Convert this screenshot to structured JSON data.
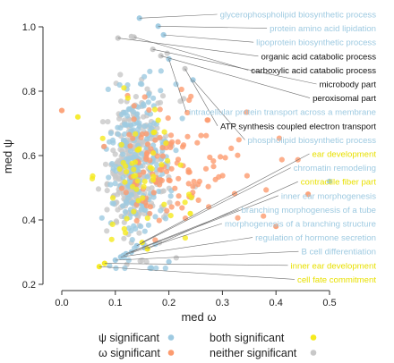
{
  "chart_data": {
    "type": "scatter",
    "xlabel": "med  ω",
    "ylabel": "med  ψ",
    "xlim": [
      -0.03,
      0.58
    ],
    "ylim": [
      0.18,
      1.08
    ],
    "x_ticks": [
      0.0,
      0.1,
      0.2,
      0.3,
      0.4,
      0.5
    ],
    "x_tick_labels": [
      "0.0",
      "0.1",
      "0.2",
      "0.3",
      "0.4",
      "0.5"
    ],
    "y_ticks": [
      0.2,
      0.4,
      0.6,
      0.8,
      1.0
    ],
    "y_tick_labels": [
      "0.2",
      "0.4",
      "0.6",
      "0.8",
      "1.0"
    ],
    "grid": false,
    "legend": {
      "placement": "bottom",
      "entries": [
        {
          "label": "ψ significant",
          "color": "#9ecae1"
        },
        {
          "label": "ω significant",
          "color": "#fc9b6f"
        },
        {
          "label": "both significant",
          "color": "#f5ea1e"
        },
        {
          "label": "neither significant",
          "color": "#c8c8c8"
        }
      ]
    },
    "colors": {
      "psi": "#9ecae1",
      "omega": "#fc9b6f",
      "both": "#f5ea1e",
      "neither": "#c8c8c8"
    },
    "annotations": [
      {
        "text": "glycerophospholipid biosynthetic process",
        "group": "psi",
        "x": 0.145,
        "y": 1.027
      },
      {
        "text": "protein amino acid lipidation",
        "group": "psi",
        "x": 0.18,
        "y": 1.002
      },
      {
        "text": "lipoprotein biosynthetic process",
        "group": "psi",
        "x": 0.19,
        "y": 0.975
      },
      {
        "text": "organic acid catabolic process",
        "group": "neither",
        "x": 0.105,
        "y": 0.965
      },
      {
        "text": "carboxylic acid catabolic process",
        "group": "neither",
        "x": 0.135,
        "y": 0.968
      },
      {
        "text": "microbody part",
        "group": "neither",
        "x": 0.17,
        "y": 0.93
      },
      {
        "text": "peroxisomal part",
        "group": "neither",
        "x": 0.185,
        "y": 0.91
      },
      {
        "text": "intracellular protein transport across a membrane",
        "group": "psi",
        "x": 0.2,
        "y": 0.9
      },
      {
        "text": "ATP synthesis coupled electron transport",
        "group": "neither",
        "x": 0.23,
        "y": 0.87
      },
      {
        "text": "phospholipid biosynthetic process",
        "group": "psi",
        "x": 0.245,
        "y": 0.835
      },
      {
        "text": "ear development",
        "group": "both",
        "x": 0.15,
        "y": 0.33
      },
      {
        "text": "chromatin remodeling",
        "group": "psi",
        "x": 0.14,
        "y": 0.32
      },
      {
        "text": "contractile fiber part",
        "group": "both",
        "x": 0.16,
        "y": 0.31
      },
      {
        "text": "inner ear morphogenesis",
        "group": "psi",
        "x": 0.13,
        "y": 0.3
      },
      {
        "text": "branching morphogenesis of a tube",
        "group": "psi",
        "x": 0.12,
        "y": 0.295
      },
      {
        "text": "morphogenesis of a branching structure",
        "group": "psi",
        "x": 0.115,
        "y": 0.29
      },
      {
        "text": "regulation of hormone secretion",
        "group": "psi",
        "x": 0.11,
        "y": 0.285
      },
      {
        "text": "B cell differentiation",
        "group": "psi",
        "x": 0.1,
        "y": 0.275
      },
      {
        "text": "inner ear development",
        "group": "both",
        "x": 0.08,
        "y": 0.265
      },
      {
        "text": "cell fate commitment",
        "group": "both",
        "x": 0.07,
        "y": 0.255
      }
    ],
    "annotation_text_colors": {
      "psi": "#9ecae1",
      "neither": "#111111",
      "both": "#e8e000"
    },
    "point_counts": {
      "neither": 320,
      "psi": 220,
      "omega": 130,
      "both": 55
    },
    "highlighted_points": [
      {
        "group": "psi",
        "x": 0.5,
        "y": 0.52
      },
      {
        "group": "omega",
        "x": 0.4,
        "y": 0.38
      },
      {
        "group": "omega",
        "x": 0.46,
        "y": 0.48
      },
      {
        "group": "both",
        "x": 0.24,
        "y": 0.42
      },
      {
        "group": "psi",
        "x": 0.2,
        "y": 0.27
      },
      {
        "group": "neither",
        "x": 0.13,
        "y": 0.97
      },
      {
        "group": "neither",
        "x": 0.19,
        "y": 0.49
      },
      {
        "group": "both",
        "x": 0.03,
        "y": 0.72
      },
      {
        "group": "omega",
        "x": 0.0,
        "y": 0.74
      }
    ]
  }
}
